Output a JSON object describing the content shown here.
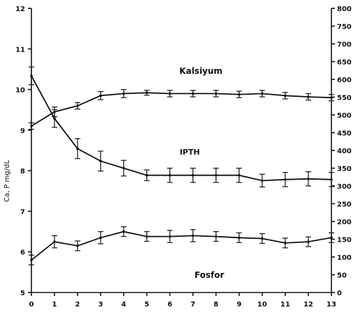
{
  "chart_data": {
    "type": "line",
    "x": [
      0,
      1,
      2,
      3,
      4,
      5,
      6,
      7,
      8,
      9,
      10,
      11,
      12,
      13
    ],
    "xlim": [
      0,
      13
    ],
    "ylabel_left": "Ca, P mg/dL",
    "ylabel_right": "",
    "left_axis": {
      "ylim": [
        5,
        12
      ],
      "ticks": [
        5,
        6,
        7,
        8,
        9,
        10,
        11,
        12
      ]
    },
    "right_axis": {
      "ylim": [
        0,
        800
      ],
      "ticks": [
        0,
        50,
        100,
        150,
        200,
        250,
        300,
        350,
        400,
        450,
        500,
        550,
        600,
        650,
        700,
        750,
        800
      ]
    },
    "series": [
      {
        "name": "Kalsiyum",
        "axis": "left",
        "values": [
          9.1,
          9.45,
          9.6,
          9.85,
          9.9,
          9.92,
          9.9,
          9.9,
          9.9,
          9.88,
          9.9,
          9.85,
          9.82,
          9.8
        ],
        "errors": [
          0.08,
          0.12,
          0.08,
          0.1,
          0.1,
          0.06,
          0.08,
          0.08,
          0.08,
          0.08,
          0.08,
          0.08,
          0.08,
          0.08
        ]
      },
      {
        "name": "iPTH",
        "axis": "right",
        "values": [
          610,
          490,
          405,
          370,
          350,
          330,
          330,
          330,
          330,
          330,
          315,
          318,
          320,
          318
        ],
        "errors": [
          25,
          25,
          28,
          28,
          22,
          15,
          20,
          20,
          20,
          20,
          18,
          20,
          20,
          20
        ]
      },
      {
        "name": "Fosfor",
        "axis": "left",
        "values": [
          5.8,
          6.25,
          6.15,
          6.35,
          6.5,
          6.38,
          6.38,
          6.4,
          6.38,
          6.35,
          6.33,
          6.22,
          6.25,
          6.35
        ],
        "errors": [
          0.12,
          0.15,
          0.12,
          0.15,
          0.12,
          0.12,
          0.15,
          0.15,
          0.12,
          0.12,
          0.12,
          0.12,
          0.12,
          0.12
        ]
      }
    ],
    "annotations": [
      "Kalsiyum",
      "IPTH",
      "Fosfor"
    ]
  }
}
